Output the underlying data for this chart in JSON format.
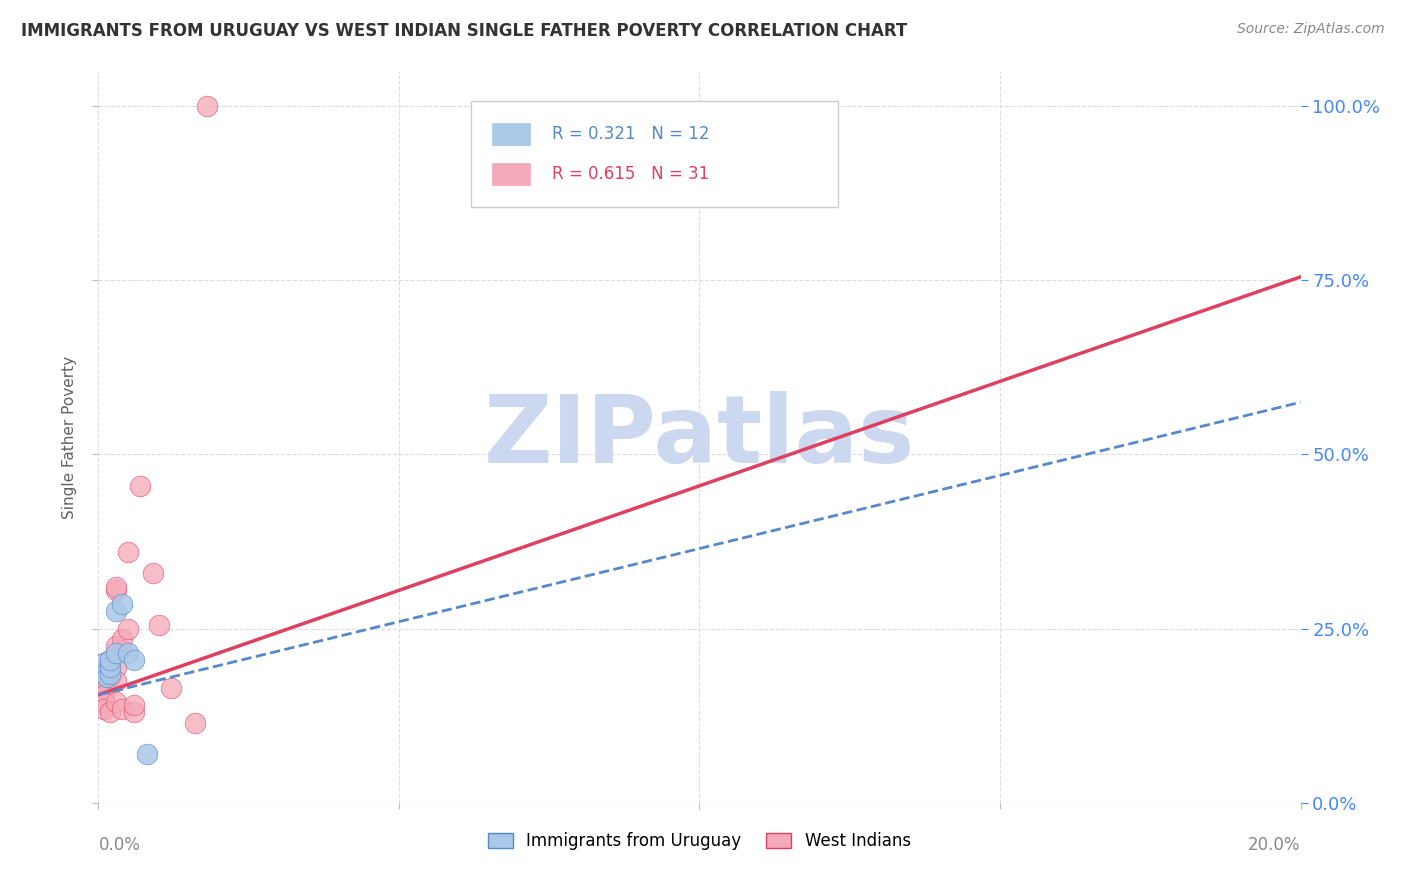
{
  "title": "IMMIGRANTS FROM URUGUAY VS WEST INDIAN SINGLE FATHER POVERTY CORRELATION CHART",
  "source": "Source: ZipAtlas.com",
  "ylabel": "Single Father Poverty",
  "ytick_labels": [
    "0.0%",
    "25.0%",
    "50.0%",
    "75.0%",
    "100.0%"
  ],
  "ytick_values": [
    0.0,
    0.25,
    0.5,
    0.75,
    1.0
  ],
  "legend_label1": "Immigrants from Uruguay",
  "legend_label2": "West Indians",
  "r1": 0.321,
  "n1": 12,
  "r2": 0.615,
  "n2": 31,
  "color1": "#aac8e8",
  "color2": "#f5a8b8",
  "line1_color": "#5588cc",
  "line2_color": "#e04060",
  "watermark_text": "ZIPatlas",
  "watermark_color": "#ccd8f0",
  "background_color": "#ffffff",
  "grid_color": "#dddddd",
  "title_color": "#333333",
  "right_axis_color": "#4488ff",
  "uruguay_x": [
    0.001,
    0.001,
    0.0015,
    0.002,
    0.002,
    0.002,
    0.003,
    0.003,
    0.004,
    0.005,
    0.006,
    0.008
  ],
  "uruguay_y": [
    0.2,
    0.185,
    0.18,
    0.185,
    0.195,
    0.205,
    0.215,
    0.275,
    0.285,
    0.215,
    0.205,
    0.07
  ],
  "west_indian_x": [
    0.001,
    0.001,
    0.001,
    0.001,
    0.001,
    0.001,
    0.001,
    0.002,
    0.002,
    0.002,
    0.002,
    0.002,
    0.003,
    0.003,
    0.003,
    0.003,
    0.003,
    0.003,
    0.004,
    0.004,
    0.004,
    0.005,
    0.005,
    0.006,
    0.006,
    0.007,
    0.009,
    0.01,
    0.012,
    0.016,
    0.018
  ],
  "west_indian_y": [
    0.2,
    0.185,
    0.175,
    0.165,
    0.155,
    0.145,
    0.135,
    0.18,
    0.185,
    0.195,
    0.205,
    0.13,
    0.305,
    0.31,
    0.225,
    0.195,
    0.175,
    0.145,
    0.22,
    0.235,
    0.135,
    0.36,
    0.25,
    0.13,
    0.14,
    0.455,
    0.33,
    0.255,
    0.165,
    0.115,
    1.0
  ],
  "xmin": 0.0,
  "xmax": 0.2,
  "ymin": 0.0,
  "ymax": 1.05,
  "line1_x0": 0.0,
  "line1_y0": 0.155,
  "line1_x1": 0.2,
  "line1_y1": 0.575,
  "line2_x0": 0.0,
  "line2_y0": 0.155,
  "line2_x1": 0.2,
  "line2_y1": 0.755
}
